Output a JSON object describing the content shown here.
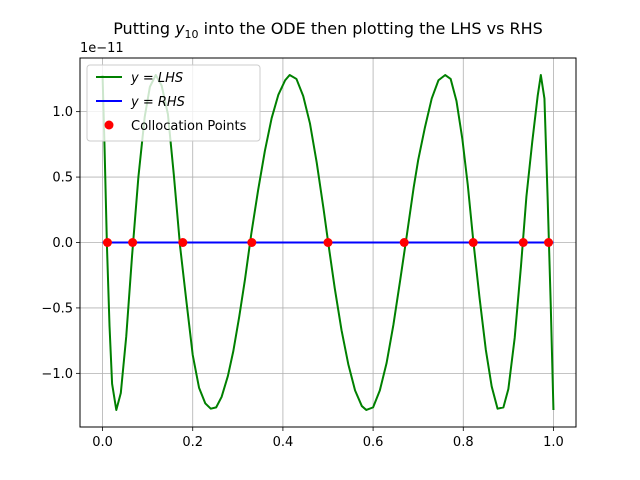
{
  "chart_data": {
    "type": "line",
    "title": {
      "pre": "Putting ",
      "var": "y",
      "sub": "10",
      "post": " into the ODE then plotting the LHS vs RHS"
    },
    "xlabel": "",
    "ylabel": "",
    "y_offset_label": "1e−11",
    "xlim": [
      -0.05,
      1.05
    ],
    "ylim": [
      -1.41,
      1.41
    ],
    "y_scale_factor": 1e-11,
    "grid": true,
    "legend_position": "top-left",
    "x_ticks": [
      {
        "value": 0.0,
        "label": "0.0"
      },
      {
        "value": 0.2,
        "label": "0.2"
      },
      {
        "value": 0.4,
        "label": "0.4"
      },
      {
        "value": 0.6,
        "label": "0.6"
      },
      {
        "value": 0.8,
        "label": "0.8"
      },
      {
        "value": 1.0,
        "label": "1.0"
      }
    ],
    "y_ticks": [
      {
        "value": 1.0,
        "label": "1.0"
      },
      {
        "value": 0.5,
        "label": "0.5"
      },
      {
        "value": 0.0,
        "label": "0.0"
      },
      {
        "value": -0.5,
        "label": "−0.5"
      },
      {
        "value": -1.0,
        "label": "−1.0"
      }
    ],
    "series": [
      {
        "name": "y = LHS",
        "name_var": "y",
        "name_rhs": "LHS",
        "color": "#008000",
        "style": "line",
        "x": [
          0.0,
          0.0045,
          0.0098,
          0.0155,
          0.0212,
          0.0305,
          0.0405,
          0.0525,
          0.0655,
          0.0795,
          0.0935,
          0.105,
          0.118,
          0.131,
          0.145,
          0.158,
          0.172,
          0.186,
          0.2,
          0.214,
          0.228,
          0.24,
          0.252,
          0.264,
          0.278,
          0.29,
          0.303,
          0.316,
          0.33,
          0.345,
          0.36,
          0.375,
          0.39,
          0.405,
          0.415,
          0.43,
          0.445,
          0.46,
          0.475,
          0.49,
          0.5,
          0.515,
          0.53,
          0.545,
          0.56,
          0.575,
          0.585,
          0.6,
          0.615,
          0.63,
          0.645,
          0.66,
          0.675,
          0.69,
          0.7,
          0.715,
          0.73,
          0.745,
          0.76,
          0.772,
          0.785,
          0.798,
          0.81,
          0.822,
          0.836,
          0.85,
          0.863,
          0.876,
          0.889,
          0.9,
          0.914,
          0.928,
          0.94,
          0.953,
          0.965,
          0.972,
          0.98,
          0.987,
          0.994,
          1.0
        ],
        "y": [
          1.28,
          0.72,
          -0.03,
          -0.64,
          -1.08,
          -1.28,
          -1.15,
          -0.72,
          -0.1,
          0.5,
          0.96,
          1.19,
          1.28,
          1.2,
          0.98,
          0.52,
          -0.03,
          -0.45,
          -0.86,
          -1.11,
          -1.23,
          -1.27,
          -1.26,
          -1.18,
          -1.02,
          -0.83,
          -0.57,
          -0.28,
          0.07,
          0.4,
          0.7,
          0.95,
          1.13,
          1.24,
          1.28,
          1.25,
          1.12,
          0.91,
          0.61,
          0.26,
          0.01,
          -0.35,
          -0.67,
          -0.93,
          -1.13,
          -1.25,
          -1.28,
          -1.26,
          -1.13,
          -0.92,
          -0.63,
          -0.29,
          0.06,
          0.42,
          0.63,
          0.88,
          1.1,
          1.24,
          1.28,
          1.25,
          1.08,
          0.79,
          0.44,
          0.02,
          -0.42,
          -0.82,
          -1.1,
          -1.27,
          -1.26,
          -1.12,
          -0.73,
          -0.18,
          0.35,
          0.77,
          1.12,
          1.28,
          1.1,
          0.35,
          -0.48,
          -1.28
        ]
      },
      {
        "name": "y = RHS",
        "name_var": "y",
        "name_rhs": "RHS",
        "color": "#0000ff",
        "style": "line",
        "x": [
          0.0,
          1.0
        ],
        "y": [
          0.0,
          0.0
        ]
      },
      {
        "name": "Collocation Points",
        "color": "#ff0000",
        "style": "markers",
        "x": [
          0.0109,
          0.0667,
          0.178,
          0.331,
          0.5,
          0.669,
          0.822,
          0.933,
          0.9891
        ],
        "y": [
          0,
          0,
          0,
          0,
          0,
          0,
          0,
          0,
          0
        ]
      }
    ]
  }
}
